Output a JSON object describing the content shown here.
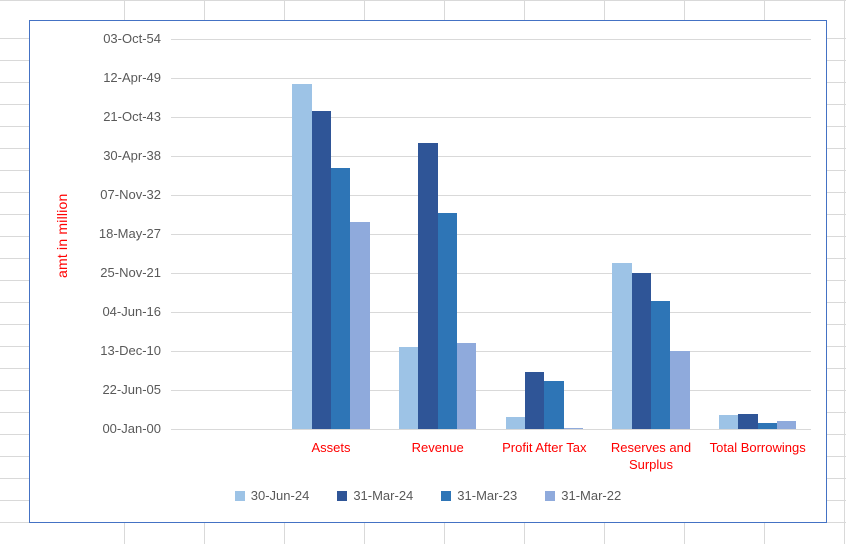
{
  "chart_data": {
    "type": "bar",
    "title": "",
    "xlabel": "",
    "ylabel": "amt in million",
    "categories": [
      "Assets",
      "Revenue",
      "Profit After Tax",
      "Reserves and Surplus",
      "Total Borrowings"
    ],
    "series": [
      {
        "name": "30-Jun-24",
        "color": "#9DC3E6",
        "values": [
          17700,
          4200,
          600,
          8500,
          700
        ]
      },
      {
        "name": "31-Mar-24",
        "color": "#2F5597",
        "values": [
          16300,
          14650,
          2950,
          8000,
          750
        ]
      },
      {
        "name": "31-Mar-23",
        "color": "#2E75B6",
        "values": [
          13400,
          11100,
          2480,
          6550,
          300
        ]
      },
      {
        "name": "31-Mar-22",
        "color": "#8FAADC",
        "values": [
          10600,
          4400,
          40,
          4000,
          400
        ]
      }
    ],
    "y_axis": {
      "min": 0,
      "max": 20000,
      "step": 2000,
      "tick_labels": [
        "00-Jan-00",
        "22-Jun-05",
        "13-Dec-10",
        "04-Jun-16",
        "25-Nov-21",
        "18-May-27",
        "07-Nov-32",
        "30-Apr-38",
        "21-Oct-43",
        "12-Apr-49",
        "03-Oct-54"
      ]
    },
    "legend_position": "bottom",
    "grid": true,
    "leading_empty_slot": true,
    "colors": {
      "axis_text": "#595959",
      "category_text": "#FF0000",
      "axis_title_text": "#FF0000",
      "plot_gridline": "#D9D9D9",
      "chart_border": "#4472C4",
      "sheet_gridline": "#D9D9D9"
    }
  }
}
